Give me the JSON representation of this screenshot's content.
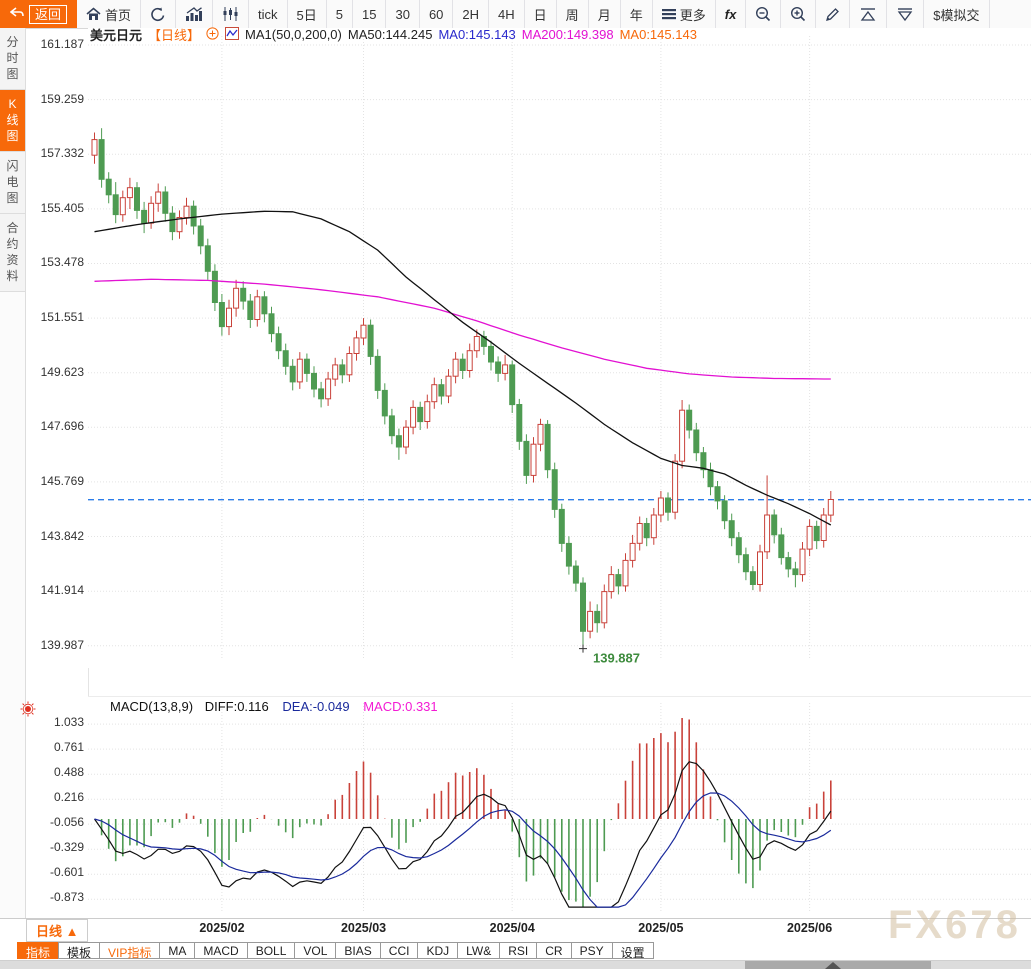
{
  "toolbar": {
    "back_label": "返回",
    "items": [
      {
        "name": "home-button",
        "icon": "home",
        "label": "首页"
      },
      {
        "name": "refresh-button",
        "icon": "refresh",
        "label": ""
      },
      {
        "name": "bar-chart-button",
        "icon": "bars",
        "label": ""
      },
      {
        "name": "candlestick-button",
        "icon": "candles",
        "label": ""
      },
      {
        "name": "tick-button",
        "icon": "",
        "label": "tick"
      },
      {
        "name": "5day-button",
        "icon": "",
        "label": "5日"
      },
      {
        "name": "tf-5-button",
        "icon": "",
        "label": "5"
      },
      {
        "name": "tf-15-button",
        "icon": "",
        "label": "15"
      },
      {
        "name": "tf-30-button",
        "icon": "",
        "label": "30"
      },
      {
        "name": "tf-60-button",
        "icon": "",
        "label": "60"
      },
      {
        "name": "tf-2h-button",
        "icon": "",
        "label": "2H"
      },
      {
        "name": "tf-4h-button",
        "icon": "",
        "label": "4H"
      },
      {
        "name": "tf-day-button",
        "icon": "",
        "label": "日"
      },
      {
        "name": "tf-week-button",
        "icon": "",
        "label": "周"
      },
      {
        "name": "tf-month-button",
        "icon": "",
        "label": "月"
      },
      {
        "name": "tf-year-button",
        "icon": "",
        "label": "年"
      },
      {
        "name": "more-button",
        "icon": "menu",
        "label": "更多"
      },
      {
        "name": "fx-indicator-button",
        "icon": "",
        "label": "fx",
        "style": "fx"
      },
      {
        "name": "zoom-out-button",
        "icon": "zoomout",
        "label": ""
      },
      {
        "name": "zoom-in-button",
        "icon": "zoomin",
        "label": ""
      },
      {
        "name": "draw-button",
        "icon": "pencil",
        "label": ""
      },
      {
        "name": "flag-up-button",
        "icon": "triup",
        "label": ""
      },
      {
        "name": "flag-down-button",
        "icon": "tridown",
        "label": ""
      },
      {
        "name": "sim-trade-button",
        "icon": "",
        "label": "$模拟交"
      }
    ]
  },
  "sidebar": {
    "tabs": [
      {
        "name": "sidebar-tab-time-chart",
        "label": "分时图",
        "active": false
      },
      {
        "name": "sidebar-tab-kline-chart",
        "label": "K线图",
        "active": true
      },
      {
        "name": "sidebar-tab-lightning-chart",
        "label": "闪电图",
        "active": false
      },
      {
        "name": "sidebar-tab-contract-info",
        "label": "合约资料",
        "active": false
      }
    ]
  },
  "symbol_header": {
    "symbol": "美元日元",
    "period_tag": "【日线】",
    "plus": "⊕",
    "ma_settings": "MA1(50,0,200,0)",
    "ma50_label": "MA50:144.245",
    "ma0_blue_label": "MA0:145.143",
    "ma200_label": "MA200:149.398",
    "ma0_orange_label": "MA0:145.143"
  },
  "macd_header": {
    "title": "MACD(13,8,9)",
    "diff_label": "DIFF:0.116",
    "dea_label": "DEA:-0.049",
    "macd_label": "MACD:0.331"
  },
  "bottom": {
    "period_selector": "日线 ▲",
    "tabs": [
      {
        "name": "tab-indicators",
        "label": "指标",
        "style": "active"
      },
      {
        "name": "tab-templates",
        "label": "模板",
        "style": ""
      },
      {
        "name": "tab-vip-indicators",
        "label": "VIP指标",
        "style": "vip"
      },
      {
        "name": "tab-ma",
        "label": "MA",
        "style": ""
      },
      {
        "name": "tab-macd",
        "label": "MACD",
        "style": ""
      },
      {
        "name": "tab-boll",
        "label": "BOLL",
        "style": ""
      },
      {
        "name": "tab-vol",
        "label": "VOL",
        "style": ""
      },
      {
        "name": "tab-bias",
        "label": "BIAS",
        "style": ""
      },
      {
        "name": "tab-cci",
        "label": "CCI",
        "style": ""
      },
      {
        "name": "tab-kdj",
        "label": "KDJ",
        "style": ""
      },
      {
        "name": "tab-lw",
        "label": "LW&",
        "style": ""
      },
      {
        "name": "tab-rsi",
        "label": "RSI",
        "style": ""
      },
      {
        "name": "tab-cr",
        "label": "CR",
        "style": ""
      },
      {
        "name": "tab-psy",
        "label": "PSY",
        "style": ""
      },
      {
        "name": "tab-settings",
        "label": "设置",
        "style": ""
      }
    ]
  },
  "watermark": "FX678",
  "colors": {
    "accent_orange": "#f7690a",
    "up_candle": "#c9423a",
    "down_candle": "#4e9b52",
    "ma50_line": "#111111",
    "ma200_line": "#e211d2",
    "diff_line": "#111111",
    "dea_line": "#1a2a9c",
    "price_line": "#2b7ce9",
    "grid": "#e3e3e3",
    "low_label": "#3d8b3d"
  },
  "chart_data": [
    {
      "type": "candlestick",
      "title": "美元日元 日线 (USD/JPY daily)",
      "y_axis_labels": [
        161.187,
        159.259,
        157.332,
        155.405,
        153.478,
        151.551,
        149.623,
        147.696,
        145.769,
        143.842,
        141.914,
        139.987
      ],
      "month_ticks": [
        {
          "index": 18,
          "label": "2025/02"
        },
        {
          "index": 38,
          "label": "2025/03"
        },
        {
          "index": 59,
          "label": "2025/04"
        },
        {
          "index": 80,
          "label": "2025/05"
        },
        {
          "index": 101,
          "label": "2025/06"
        }
      ],
      "price_line": {
        "value": 145.143
      },
      "low_annotation": {
        "index": 69,
        "price": 139.887,
        "label": "139.887"
      },
      "ma50_points": [
        [
          0,
          154.6
        ],
        [
          6,
          154.85
        ],
        [
          12,
          155.05
        ],
        [
          18,
          155.22
        ],
        [
          24,
          155.32
        ],
        [
          28,
          155.3
        ],
        [
          32,
          155.05
        ],
        [
          36,
          154.6
        ],
        [
          40,
          153.95
        ],
        [
          44,
          153.0
        ],
        [
          48,
          152.2
        ],
        [
          52,
          151.4
        ],
        [
          56,
          150.7
        ],
        [
          60,
          149.95
        ],
        [
          64,
          149.25
        ],
        [
          68,
          148.55
        ],
        [
          72,
          147.8
        ],
        [
          76,
          147.15
        ],
        [
          80,
          146.6
        ],
        [
          83,
          146.35
        ],
        [
          86,
          146.25
        ],
        [
          89,
          146.05
        ],
        [
          92,
          145.65
        ],
        [
          95,
          145.3
        ],
        [
          98,
          145.0
        ],
        [
          101,
          144.65
        ],
        [
          104,
          144.25
        ]
      ],
      "ma200_points": [
        [
          0,
          152.85
        ],
        [
          8,
          152.92
        ],
        [
          16,
          152.88
        ],
        [
          24,
          152.75
        ],
        [
          32,
          152.55
        ],
        [
          40,
          152.3
        ],
        [
          48,
          151.9
        ],
        [
          54,
          151.45
        ],
        [
          60,
          150.95
        ],
        [
          66,
          150.5
        ],
        [
          72,
          150.1
        ],
        [
          78,
          149.78
        ],
        [
          84,
          149.58
        ],
        [
          90,
          149.47
        ],
        [
          96,
          149.42
        ],
        [
          104,
          149.4
        ]
      ],
      "candles": [
        [
          157.3,
          158.1,
          157.0,
          157.85
        ],
        [
          157.85,
          158.25,
          156.15,
          156.45
        ],
        [
          156.45,
          156.7,
          155.6,
          155.9
        ],
        [
          155.9,
          156.35,
          154.9,
          155.2
        ],
        [
          155.2,
          156.05,
          154.95,
          155.8
        ],
        [
          155.8,
          156.5,
          155.4,
          156.15
        ],
        [
          156.15,
          156.35,
          155.05,
          155.35
        ],
        [
          155.35,
          155.65,
          154.55,
          154.9
        ],
        [
          154.9,
          155.85,
          154.7,
          155.6
        ],
        [
          155.6,
          156.3,
          155.3,
          156.0
        ],
        [
          156.0,
          156.2,
          154.95,
          155.25
        ],
        [
          155.25,
          155.5,
          154.3,
          154.6
        ],
        [
          154.6,
          155.35,
          154.35,
          155.1
        ],
        [
          155.1,
          155.8,
          154.85,
          155.5
        ],
        [
          155.5,
          155.7,
          154.5,
          154.8
        ],
        [
          154.8,
          155.05,
          153.8,
          154.1
        ],
        [
          154.1,
          154.35,
          152.9,
          153.2
        ],
        [
          153.2,
          153.45,
          151.8,
          152.1
        ],
        [
          152.1,
          152.4,
          150.93,
          151.25
        ],
        [
          151.25,
          152.2,
          150.95,
          151.9
        ],
        [
          151.9,
          152.9,
          151.6,
          152.6
        ],
        [
          152.6,
          152.85,
          151.85,
          152.15
        ],
        [
          152.15,
          152.4,
          151.2,
          151.5
        ],
        [
          151.5,
          152.55,
          151.25,
          152.3
        ],
        [
          152.3,
          152.5,
          151.4,
          151.7
        ],
        [
          151.7,
          151.95,
          150.7,
          151.0
        ],
        [
          151.0,
          151.25,
          150.1,
          150.4
        ],
        [
          150.4,
          150.65,
          149.55,
          149.85
        ],
        [
          149.85,
          150.1,
          149.0,
          149.3
        ],
        [
          149.3,
          150.35,
          149.05,
          150.1
        ],
        [
          150.1,
          150.3,
          149.3,
          149.6
        ],
        [
          149.6,
          149.85,
          148.75,
          149.05
        ],
        [
          149.05,
          149.3,
          148.4,
          148.7
        ],
        [
          148.7,
          149.65,
          148.45,
          149.4
        ],
        [
          149.4,
          150.15,
          149.15,
          149.9
        ],
        [
          149.9,
          150.1,
          149.25,
          149.55
        ],
        [
          149.55,
          150.55,
          149.3,
          150.3
        ],
        [
          150.3,
          151.1,
          150.05,
          150.85
        ],
        [
          150.85,
          151.55,
          150.6,
          151.3
        ],
        [
          151.3,
          151.5,
          149.9,
          150.2
        ],
        [
          150.2,
          150.45,
          148.7,
          149.0
        ],
        [
          149.0,
          149.25,
          147.8,
          148.1
        ],
        [
          148.1,
          148.35,
          147.1,
          147.4
        ],
        [
          147.4,
          147.65,
          146.55,
          147.0
        ],
        [
          147.0,
          147.95,
          146.75,
          147.7
        ],
        [
          147.7,
          148.65,
          147.45,
          148.4
        ],
        [
          148.4,
          148.6,
          147.6,
          147.9
        ],
        [
          147.9,
          148.85,
          147.65,
          148.6
        ],
        [
          148.6,
          149.45,
          148.35,
          149.2
        ],
        [
          149.2,
          149.4,
          148.5,
          148.8
        ],
        [
          148.8,
          149.75,
          148.55,
          149.5
        ],
        [
          149.5,
          150.35,
          149.25,
          150.1
        ],
        [
          150.1,
          150.3,
          149.4,
          149.7
        ],
        [
          149.7,
          150.65,
          149.45,
          150.4
        ],
        [
          150.4,
          151.15,
          150.15,
          150.9
        ],
        [
          150.9,
          151.1,
          150.25,
          150.55
        ],
        [
          150.55,
          150.75,
          149.7,
          150.0
        ],
        [
          150.0,
          150.2,
          149.3,
          149.6
        ],
        [
          149.6,
          150.25,
          149.35,
          149.9
        ],
        [
          149.9,
          150.05,
          148.2,
          148.5
        ],
        [
          148.5,
          148.7,
          146.9,
          147.2
        ],
        [
          147.2,
          147.45,
          145.7,
          146.0
        ],
        [
          146.0,
          147.35,
          145.75,
          147.1
        ],
        [
          147.1,
          148.0,
          146.85,
          147.8
        ],
        [
          147.8,
          147.95,
          145.9,
          146.2
        ],
        [
          146.2,
          146.45,
          144.5,
          144.8
        ],
        [
          144.8,
          145.0,
          143.3,
          143.6
        ],
        [
          143.6,
          143.85,
          142.5,
          142.8
        ],
        [
          142.8,
          143.0,
          141.9,
          142.2
        ],
        [
          142.2,
          142.4,
          139.887,
          140.5
        ],
        [
          140.5,
          141.55,
          140.25,
          141.2
        ],
        [
          141.2,
          141.45,
          140.45,
          140.8
        ],
        [
          140.8,
          142.15,
          140.6,
          141.9
        ],
        [
          141.9,
          142.8,
          141.65,
          142.5
        ],
        [
          142.5,
          142.7,
          141.8,
          142.1
        ],
        [
          142.1,
          143.25,
          141.9,
          143.0
        ],
        [
          143.0,
          143.9,
          142.75,
          143.6
        ],
        [
          143.6,
          144.55,
          143.35,
          144.3
        ],
        [
          144.3,
          144.5,
          143.5,
          143.8
        ],
        [
          143.8,
          144.85,
          143.55,
          144.6
        ],
        [
          144.6,
          145.45,
          144.35,
          145.2
        ],
        [
          145.2,
          145.4,
          144.4,
          144.7
        ],
        [
          144.7,
          146.75,
          144.45,
          146.5
        ],
        [
          146.5,
          148.66,
          146.25,
          148.3
        ],
        [
          148.3,
          148.5,
          147.3,
          147.6
        ],
        [
          147.6,
          147.85,
          146.5,
          146.8
        ],
        [
          146.8,
          147.0,
          145.9,
          146.2
        ],
        [
          146.2,
          146.45,
          145.3,
          145.6
        ],
        [
          145.6,
          145.8,
          144.8,
          145.1
        ],
        [
          145.1,
          145.3,
          144.1,
          144.4
        ],
        [
          144.4,
          144.65,
          143.5,
          143.8
        ],
        [
          143.8,
          144.0,
          142.9,
          143.2
        ],
        [
          143.2,
          143.45,
          142.3,
          142.6
        ],
        [
          142.6,
          142.8,
          141.95,
          142.15
        ],
        [
          142.15,
          143.55,
          141.9,
          143.3
        ],
        [
          143.3,
          146.0,
          143.05,
          144.6
        ],
        [
          144.6,
          144.8,
          143.6,
          143.9
        ],
        [
          143.9,
          144.15,
          142.85,
          143.1
        ],
        [
          143.1,
          143.3,
          142.4,
          142.7
        ],
        [
          142.7,
          142.95,
          142.05,
          142.5
        ],
        [
          142.5,
          143.65,
          142.25,
          143.4
        ],
        [
          143.4,
          144.45,
          143.15,
          144.2
        ],
        [
          144.2,
          144.4,
          143.4,
          143.7
        ],
        [
          143.7,
          144.85,
          143.45,
          144.6
        ],
        [
          144.6,
          145.45,
          144.35,
          145.15
        ]
      ]
    },
    {
      "type": "bar",
      "name": "MACD",
      "params": [
        13,
        8,
        9
      ],
      "derived_from": "candles_closes",
      "title": "MACD(13,8,9)",
      "header_values": {
        "diff": 0.116,
        "dea": -0.049,
        "macd": 0.331
      },
      "y_axis_labels": [
        1.033,
        0.761,
        0.488,
        0.216,
        -0.056,
        -0.329,
        -0.601,
        -0.873
      ]
    }
  ]
}
